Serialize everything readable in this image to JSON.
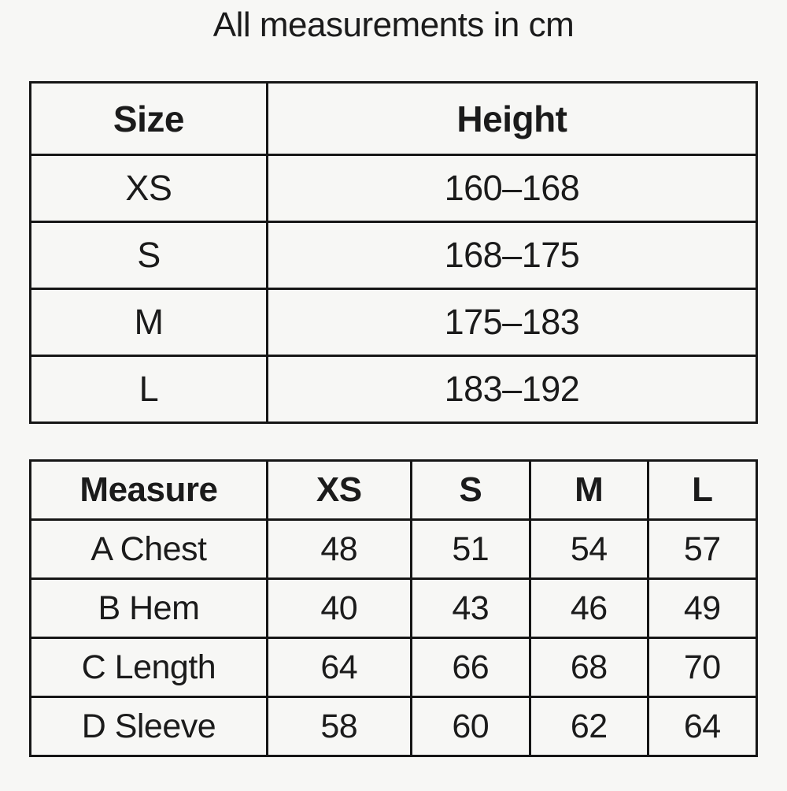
{
  "page": {
    "title": "All measurements in cm",
    "background_color": "#f7f7f5",
    "border_color": "#161616",
    "text_color": "#1b1b1b"
  },
  "height_table": {
    "headers": [
      "Size",
      "Height"
    ],
    "rows": [
      {
        "size": "XS",
        "height": "160–168"
      },
      {
        "size": "S",
        "height": "168–175"
      },
      {
        "size": "M",
        "height": "175–183"
      },
      {
        "size": "L",
        "height": "183–192"
      }
    ]
  },
  "measure_table": {
    "headers": [
      "Measure",
      "XS",
      "S",
      "M",
      "L"
    ],
    "rows": [
      {
        "label": "A Chest",
        "values": [
          "48",
          "51",
          "54",
          "57"
        ]
      },
      {
        "label": "B Hem",
        "values": [
          "40",
          "43",
          "46",
          "49"
        ]
      },
      {
        "label": "C Length",
        "values": [
          "64",
          "66",
          "68",
          "70"
        ]
      },
      {
        "label": "D Sleeve",
        "values": [
          "58",
          "60",
          "62",
          "64"
        ]
      }
    ]
  }
}
